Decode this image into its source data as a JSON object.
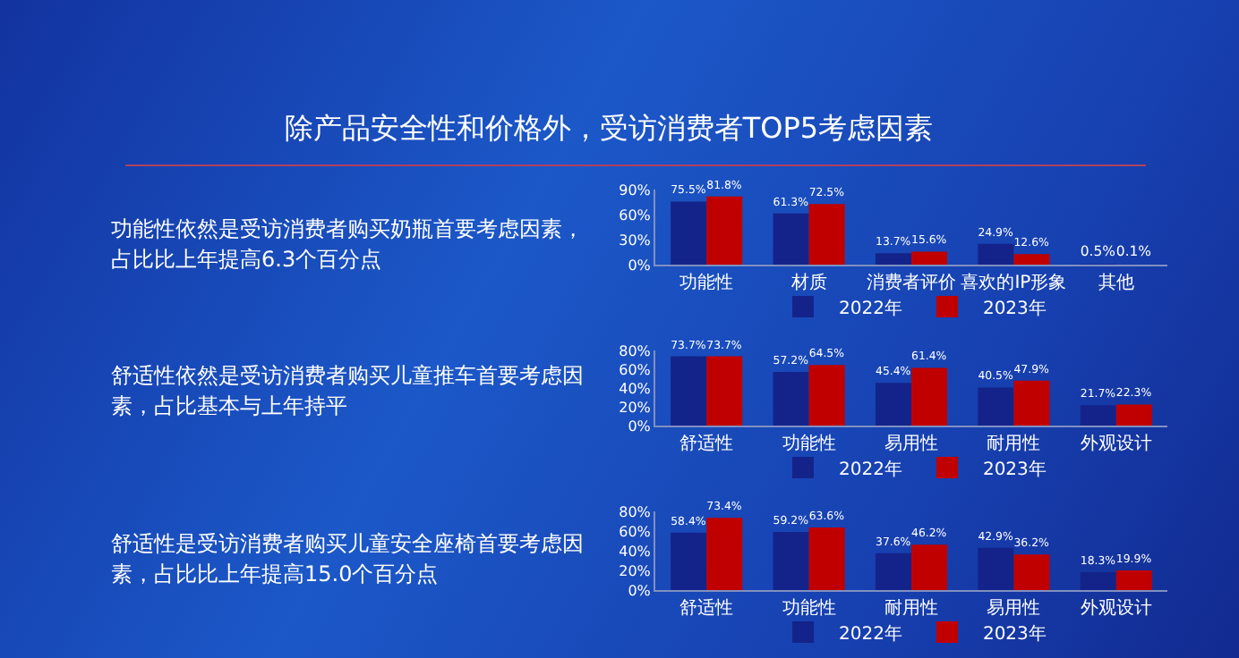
{
  "chart_data": [
    {
      "type": "bar",
      "title": "除产品安全性和价格外，受访消费者TOP5考虑因素",
      "annotations": [
        "功能性依然是受访消费者购买奶瓶首要考虑因素，占比比上年提高6.3个百分点"
      ],
      "categories": [
        "功能性",
        "材质",
        "消费者评价",
        "喜欢的IP形象",
        "其他"
      ],
      "series": [
        {
          "name": "2022年",
          "color": "#14238a",
          "values": [
            75.5,
            61.3,
            13.7,
            24.9,
            0.5
          ],
          "value_labels": [
            "75.5%",
            "61.3%",
            "13.7%",
            "24.9%",
            "0.5%"
          ]
        },
        {
          "name": "2023年",
          "color": "#c00000",
          "values": [
            81.8,
            72.5,
            15.6,
            12.6,
            0.1
          ],
          "value_labels": [
            "81.8%",
            "72.5%",
            "15.6%",
            "12.6%",
            "0.1%"
          ]
        }
      ],
      "ylim": [
        0,
        90
      ],
      "yticks": [
        {
          "value": 0,
          "label": "0%"
        },
        {
          "value": 30,
          "label": "30%"
        },
        {
          "value": 60,
          "label": "60%"
        },
        {
          "value": 90,
          "label": "90%"
        }
      ],
      "grid": false,
      "legend": "bottom"
    },
    {
      "type": "bar",
      "annotations": [
        "舒适性依然是受访消费者购买儿童推车首要考虑因素，占比基本与上年持平"
      ],
      "categories": [
        "舒适性",
        "功能性",
        "易用性",
        "耐用性",
        "外观设计"
      ],
      "series": [
        {
          "name": "2022年",
          "color": "#14238a",
          "values": [
            73.7,
            57.2,
            45.4,
            40.5,
            21.7
          ],
          "value_labels": [
            "73.7%",
            "57.2%",
            "45.4%",
            "40.5%",
            "21.7%"
          ]
        },
        {
          "name": "2023年",
          "color": "#c00000",
          "values": [
            73.7,
            64.5,
            61.4,
            47.9,
            22.3
          ],
          "value_labels": [
            "73.7%",
            "64.5%",
            "61.4%",
            "47.9%",
            "22.3%"
          ]
        }
      ],
      "ylim": [
        0,
        80
      ],
      "yticks": [
        {
          "value": 0,
          "label": "0%"
        },
        {
          "value": 20,
          "label": "20%"
        },
        {
          "value": 40,
          "label": "40%"
        },
        {
          "value": 60,
          "label": "60%"
        },
        {
          "value": 80,
          "label": "80%"
        }
      ],
      "grid": false,
      "legend": "bottom"
    },
    {
      "type": "bar",
      "annotations": [
        "舒适性是受访消费者购买儿童安全座椅首要考虑因素，占比比上年提高15.0个百分点"
      ],
      "categories": [
        "舒适性",
        "功能性",
        "耐用性",
        "易用性",
        "外观设计"
      ],
      "series": [
        {
          "name": "2022年",
          "color": "#14238a",
          "values": [
            58.4,
            59.2,
            37.6,
            42.9,
            18.3
          ],
          "value_labels": [
            "58.4%",
            "59.2%",
            "37.6%",
            "42.9%",
            "18.3%"
          ]
        },
        {
          "name": "2023年",
          "color": "#c00000",
          "values": [
            73.4,
            63.6,
            46.2,
            36.2,
            19.9
          ],
          "value_labels": [
            "73.4%",
            "63.6%",
            "46.2%",
            "36.2%",
            "19.9%"
          ]
        }
      ],
      "ylim": [
        0,
        80
      ],
      "yticks": [
        {
          "value": 0,
          "label": "0%"
        },
        {
          "value": 20,
          "label": "20%"
        },
        {
          "value": 40,
          "label": "40%"
        },
        {
          "value": 60,
          "label": "60%"
        },
        {
          "value": 80,
          "label": "80%"
        }
      ],
      "grid": false,
      "legend": "bottom"
    }
  ]
}
